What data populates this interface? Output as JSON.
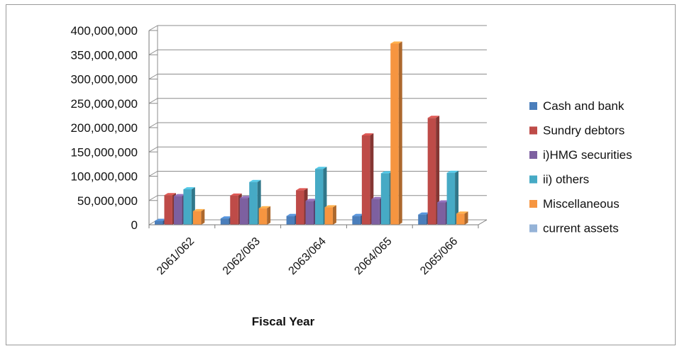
{
  "chart_data": {
    "type": "bar",
    "title": "",
    "xlabel": "Fiscal Year",
    "ylabel": "",
    "ylim": [
      0,
      400000000
    ],
    "yticks": [
      0,
      50000000,
      100000000,
      150000000,
      200000000,
      250000000,
      300000000,
      350000000,
      400000000
    ],
    "ytick_labels": [
      "0",
      "50,000,000",
      "100,000,000",
      "150,000,000",
      "200,000,000",
      "250,000,000",
      "300,000,000",
      "350,000,000",
      "400,000,000"
    ],
    "grid": true,
    "legend_position": "right",
    "categories": [
      "2061/062",
      "2062/063",
      "2063/064",
      "2064/065",
      "2065/066"
    ],
    "series": [
      {
        "name": "Cash and bank",
        "color": "#4a7ebb",
        "values": [
          8000000,
          13000000,
          18000000,
          18000000,
          21000000
        ]
      },
      {
        "name": "Sundry debtors",
        "color": "#be4b48",
        "values": [
          61000000,
          60000000,
          71000000,
          184000000,
          220000000
        ]
      },
      {
        "name": "i)HMG securities",
        "color": "#7d60a0",
        "values": [
          59000000,
          55000000,
          49000000,
          53000000,
          46000000
        ]
      },
      {
        "name": "ii) others",
        "color": "#46aac5",
        "values": [
          73000000,
          88000000,
          115000000,
          106000000,
          107000000
        ]
      },
      {
        "name": "Miscellaneous",
        "color": "#f69540",
        "values": [
          28000000,
          34000000,
          36000000,
          373000000,
          23000000
        ]
      },
      {
        "name": "current assets",
        "color": "#95b3d7",
        "values": [
          0,
          0,
          0,
          0,
          0
        ]
      }
    ]
  }
}
